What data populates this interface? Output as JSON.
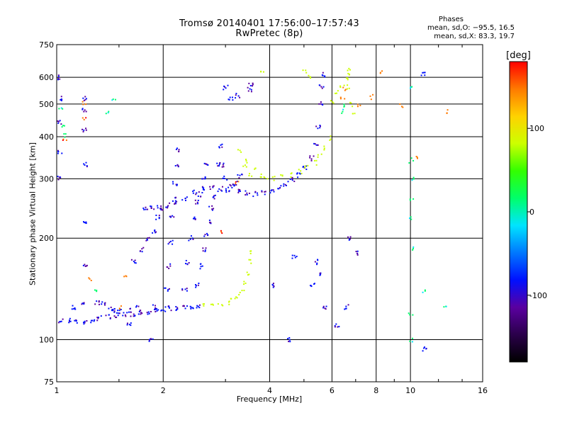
{
  "chart_data": {
    "type": "scatter",
    "title_line1": "Tromsø 20140401 17:56:00–17:57:43",
    "title_line2": "RwPretec (8p)",
    "stats_title": "Phases",
    "stats_o": "mean, sd,O: −95.5, 16.5",
    "stats_x": "mean, sd,X:  83.3, 19.7",
    "xlabel": "Frequency [MHz]",
    "ylabel": "Stationary phase Virtual Height [km]",
    "x_scale": "log",
    "y_scale": "log",
    "xlim": [
      1,
      16
    ],
    "ylim": [
      75,
      750
    ],
    "grid": true,
    "xticks": [
      1,
      2,
      4,
      6,
      8,
      10,
      16
    ],
    "yticks": [
      75,
      100,
      200,
      300,
      400,
      500,
      600,
      750
    ],
    "colorbar": {
      "label": "[deg]",
      "range": [
        -180,
        180
      ],
      "ticks": [
        100,
        0,
        -100
      ],
      "colors": [
        "#000000",
        "#2a004a",
        "#5a00a0",
        "#0010ff",
        "#0078ff",
        "#00e4ff",
        "#00ff6a",
        "#33ff00",
        "#ccff00",
        "#ffd200",
        "#ff7a00",
        "#ff0000"
      ]
    },
    "series": [
      {
        "phase": -95,
        "points": [
          [
            1.03,
            114
          ],
          [
            1.08,
            114
          ],
          [
            1.14,
            113
          ],
          [
            1.2,
            112
          ],
          [
            1.26,
            114
          ],
          [
            1.32,
            116
          ],
          [
            1.4,
            117
          ],
          [
            1.48,
            118
          ],
          [
            1.56,
            119
          ],
          [
            1.64,
            119
          ],
          [
            1.72,
            120
          ],
          [
            1.82,
            121
          ],
          [
            1.92,
            122
          ],
          [
            2.0,
            123
          ],
          [
            2.1,
            124
          ],
          [
            2.2,
            124
          ],
          [
            2.3,
            124
          ],
          [
            2.4,
            125
          ],
          [
            2.5,
            126
          ],
          [
            1.12,
            125
          ],
          [
            1.18,
            127
          ],
          [
            1.3,
            128
          ],
          [
            1.42,
            123
          ],
          [
            1.5,
            121
          ],
          [
            1.6,
            122
          ],
          [
            1.7,
            124
          ],
          [
            1.9,
            125
          ],
          [
            1.65,
            170
          ],
          [
            1.75,
            185
          ],
          [
            1.82,
            200
          ],
          [
            1.88,
            210
          ],
          [
            1.93,
            230
          ],
          [
            1.97,
            245
          ],
          [
            1.78,
            244
          ],
          [
            1.86,
            245
          ],
          [
            1.95,
            247
          ],
          [
            2.05,
            250
          ],
          [
            2.15,
            255
          ],
          [
            2.3,
            263
          ],
          [
            2.45,
            273
          ],
          [
            2.6,
            282
          ],
          [
            2.75,
            282
          ],
          [
            2.9,
            280
          ],
          [
            3.05,
            278
          ],
          [
            3.25,
            275
          ],
          [
            3.45,
            272
          ],
          [
            3.65,
            270
          ],
          [
            3.85,
            272
          ],
          [
            4.05,
            277
          ],
          [
            4.25,
            283
          ],
          [
            4.45,
            290
          ],
          [
            4.65,
            298
          ],
          [
            4.85,
            308
          ],
          [
            5.05,
            322
          ],
          [
            5.25,
            345
          ],
          [
            5.4,
            380
          ],
          [
            5.5,
            430
          ],
          [
            5.58,
            500
          ],
          [
            5.62,
            560
          ],
          [
            5.64,
            610
          ],
          [
            2.05,
            140
          ],
          [
            2.07,
            165
          ],
          [
            2.1,
            195
          ],
          [
            2.12,
            230
          ],
          [
            2.14,
            260
          ],
          [
            2.16,
            290
          ],
          [
            2.18,
            330
          ],
          [
            2.2,
            365
          ],
          [
            2.3,
            140
          ],
          [
            2.35,
            170
          ],
          [
            2.4,
            200
          ],
          [
            2.45,
            230
          ],
          [
            2.5,
            255
          ],
          [
            2.55,
            270
          ],
          [
            2.6,
            300
          ],
          [
            2.65,
            330
          ],
          [
            2.5,
            145
          ],
          [
            2.55,
            165
          ],
          [
            2.6,
            185
          ],
          [
            2.65,
            205
          ],
          [
            2.7,
            225
          ],
          [
            2.74,
            245
          ],
          [
            2.78,
            265
          ],
          [
            2.85,
            330
          ],
          [
            2.9,
            375
          ],
          [
            2.92,
            330
          ],
          [
            3.0,
            300
          ],
          [
            3.1,
            285
          ],
          [
            3.2,
            290
          ],
          [
            3.3,
            305
          ],
          [
            3.0,
            560
          ],
          [
            3.1,
            520
          ],
          [
            3.25,
            530
          ],
          [
            3.5,
            550
          ],
          [
            3.55,
            570
          ],
          [
            1.02,
            300
          ],
          [
            1.02,
            360
          ],
          [
            1.02,
            440
          ],
          [
            1.02,
            520
          ],
          [
            1.02,
            600
          ],
          [
            1.2,
            165
          ],
          [
            1.2,
            220
          ],
          [
            1.2,
            330
          ],
          [
            1.2,
            420
          ],
          [
            1.2,
            480
          ],
          [
            1.2,
            520
          ],
          [
            1.35,
            128
          ],
          [
            1.45,
            122
          ],
          [
            1.6,
            112
          ],
          [
            1.85,
            100
          ],
          [
            4.05,
            145
          ],
          [
            4.5,
            100
          ],
          [
            4.7,
            175
          ],
          [
            5.3,
            145
          ],
          [
            5.4,
            170
          ],
          [
            5.5,
            155
          ],
          [
            5.7,
            125
          ],
          [
            6.2,
            110
          ],
          [
            6.6,
            125
          ],
          [
            6.7,
            200
          ],
          [
            7.1,
            180
          ],
          [
            10.9,
            615
          ],
          [
            10.95,
            94
          ]
        ],
        "color_hint": "blue"
      },
      {
        "phase": 83,
        "points": [
          [
            2.6,
            128
          ],
          [
            2.75,
            128
          ],
          [
            2.9,
            128
          ],
          [
            3.05,
            129
          ],
          [
            3.15,
            131
          ],
          [
            3.25,
            135
          ],
          [
            3.35,
            140
          ],
          [
            3.42,
            148
          ],
          [
            3.47,
            158
          ],
          [
            3.5,
            170
          ],
          [
            3.52,
            182
          ],
          [
            3.45,
            340
          ],
          [
            3.6,
            320
          ],
          [
            3.75,
            305
          ],
          [
            3.9,
            300
          ],
          [
            4.1,
            300
          ],
          [
            4.35,
            303
          ],
          [
            4.6,
            308
          ],
          [
            4.85,
            315
          ],
          [
            5.1,
            325
          ],
          [
            5.35,
            335
          ],
          [
            5.55,
            350
          ],
          [
            5.75,
            370
          ],
          [
            5.9,
            395
          ],
          [
            3.3,
            360
          ],
          [
            3.4,
            330
          ],
          [
            3.55,
            310
          ],
          [
            6.0,
            510
          ],
          [
            6.2,
            540
          ],
          [
            6.4,
            565
          ],
          [
            6.55,
            590
          ],
          [
            6.65,
            610
          ],
          [
            6.7,
            560
          ],
          [
            6.8,
            500
          ],
          [
            6.95,
            470
          ],
          [
            3.8,
            615
          ],
          [
            5.05,
            625
          ],
          [
            5.2,
            600
          ],
          [
            6.75,
            630
          ]
        ],
        "color_hint": "yellow"
      },
      {
        "phase": 150,
        "points": [
          [
            1.2,
            450
          ],
          [
            1.2,
            500
          ],
          [
            1.05,
            390
          ],
          [
            1.55,
            155
          ],
          [
            1.25,
            150
          ],
          [
            6.55,
            555
          ],
          [
            6.45,
            525
          ],
          [
            7.1,
            490
          ],
          [
            7.8,
            525
          ],
          [
            8.2,
            620
          ],
          [
            9.4,
            495
          ],
          [
            12.8,
            475
          ],
          [
            10.4,
            350
          ],
          [
            2.9,
            210
          ],
          [
            3.25,
            290
          ],
          [
            1.5,
            125
          ]
        ],
        "color_hint": "orange"
      },
      {
        "phase": 10,
        "points": [
          [
            1.4,
            470
          ],
          [
            1.45,
            520
          ],
          [
            1.05,
            405
          ],
          [
            1.3,
            140
          ],
          [
            6.35,
            475
          ],
          [
            6.45,
            495
          ],
          [
            10.0,
            100
          ],
          [
            10.0,
            120
          ],
          [
            10.05,
            340
          ],
          [
            10.1,
            260
          ],
          [
            10.05,
            185
          ],
          [
            10.0,
            230
          ],
          [
            10.1,
            560
          ],
          [
            10.2,
            300
          ],
          [
            11.0,
            140
          ],
          [
            12.6,
            125
          ],
          [
            1.03,
            485
          ],
          [
            1.04,
            430
          ]
        ],
        "color_hint": "green-cyan"
      }
    ]
  }
}
